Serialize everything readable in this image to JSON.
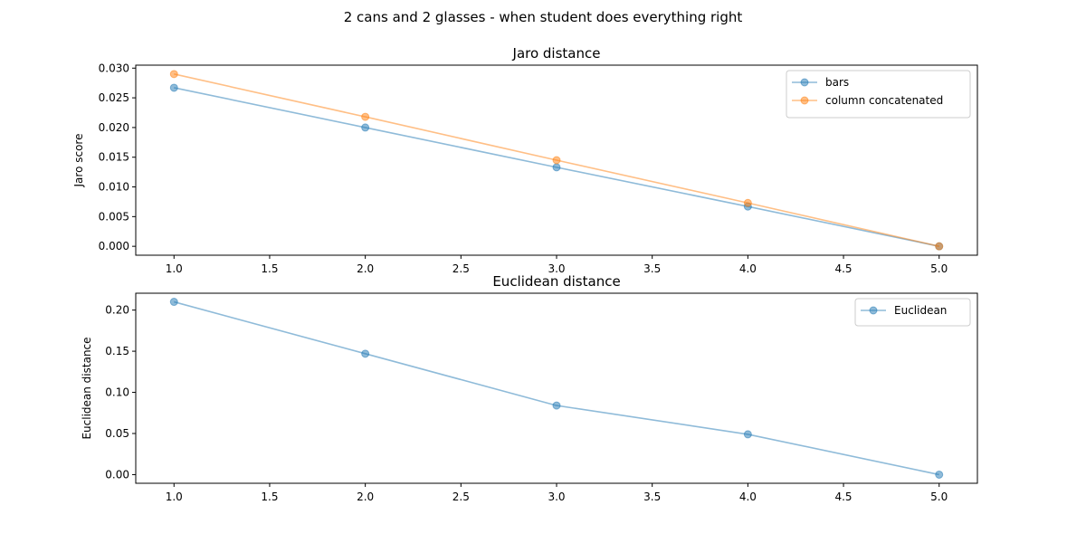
{
  "figure": {
    "title": "2 cans and 2 glasses - when student does everything right"
  },
  "chart_data": [
    {
      "type": "line",
      "title": "Jaro distance",
      "xlabel": "",
      "ylabel": "Jaro score",
      "xlim": [
        0.8,
        5.2
      ],
      "ylim": [
        -0.0015,
        0.0305
      ],
      "xticks": [
        "1.0",
        "1.5",
        "2.0",
        "2.5",
        "3.0",
        "3.5",
        "4.0",
        "4.5",
        "5.0"
      ],
      "yticks": [
        "0.000",
        "0.005",
        "0.010",
        "0.015",
        "0.020",
        "0.025",
        "0.030"
      ],
      "grid": false,
      "legend_position": "upper right",
      "x": [
        1,
        2,
        3,
        4,
        5
      ],
      "series": [
        {
          "name": "bars",
          "color": "#1f77b4",
          "values": [
            0.0267,
            0.02,
            0.0133,
            0.0067,
            0.0
          ]
        },
        {
          "name": "column concatenated",
          "color": "#ff7f0e",
          "values": [
            0.029,
            0.0218,
            0.0145,
            0.0073,
            0.0
          ]
        }
      ]
    },
    {
      "type": "line",
      "title": "Euclidean distance",
      "xlabel": "",
      "ylabel": "Euclidean distance",
      "xlim": [
        0.8,
        5.2
      ],
      "ylim": [
        -0.0105,
        0.2205
      ],
      "xticks": [
        "1.0",
        "1.5",
        "2.0",
        "2.5",
        "3.0",
        "3.5",
        "4.0",
        "4.5",
        "5.0"
      ],
      "yticks": [
        "0.00",
        "0.05",
        "0.10",
        "0.15",
        "0.20"
      ],
      "grid": false,
      "legend_position": "upper right",
      "x": [
        1,
        2,
        3,
        4,
        5
      ],
      "series": [
        {
          "name": "Euclidean",
          "color": "#1f77b4",
          "values": [
            0.21,
            0.147,
            0.084,
            0.049,
            0.0
          ]
        }
      ]
    }
  ]
}
